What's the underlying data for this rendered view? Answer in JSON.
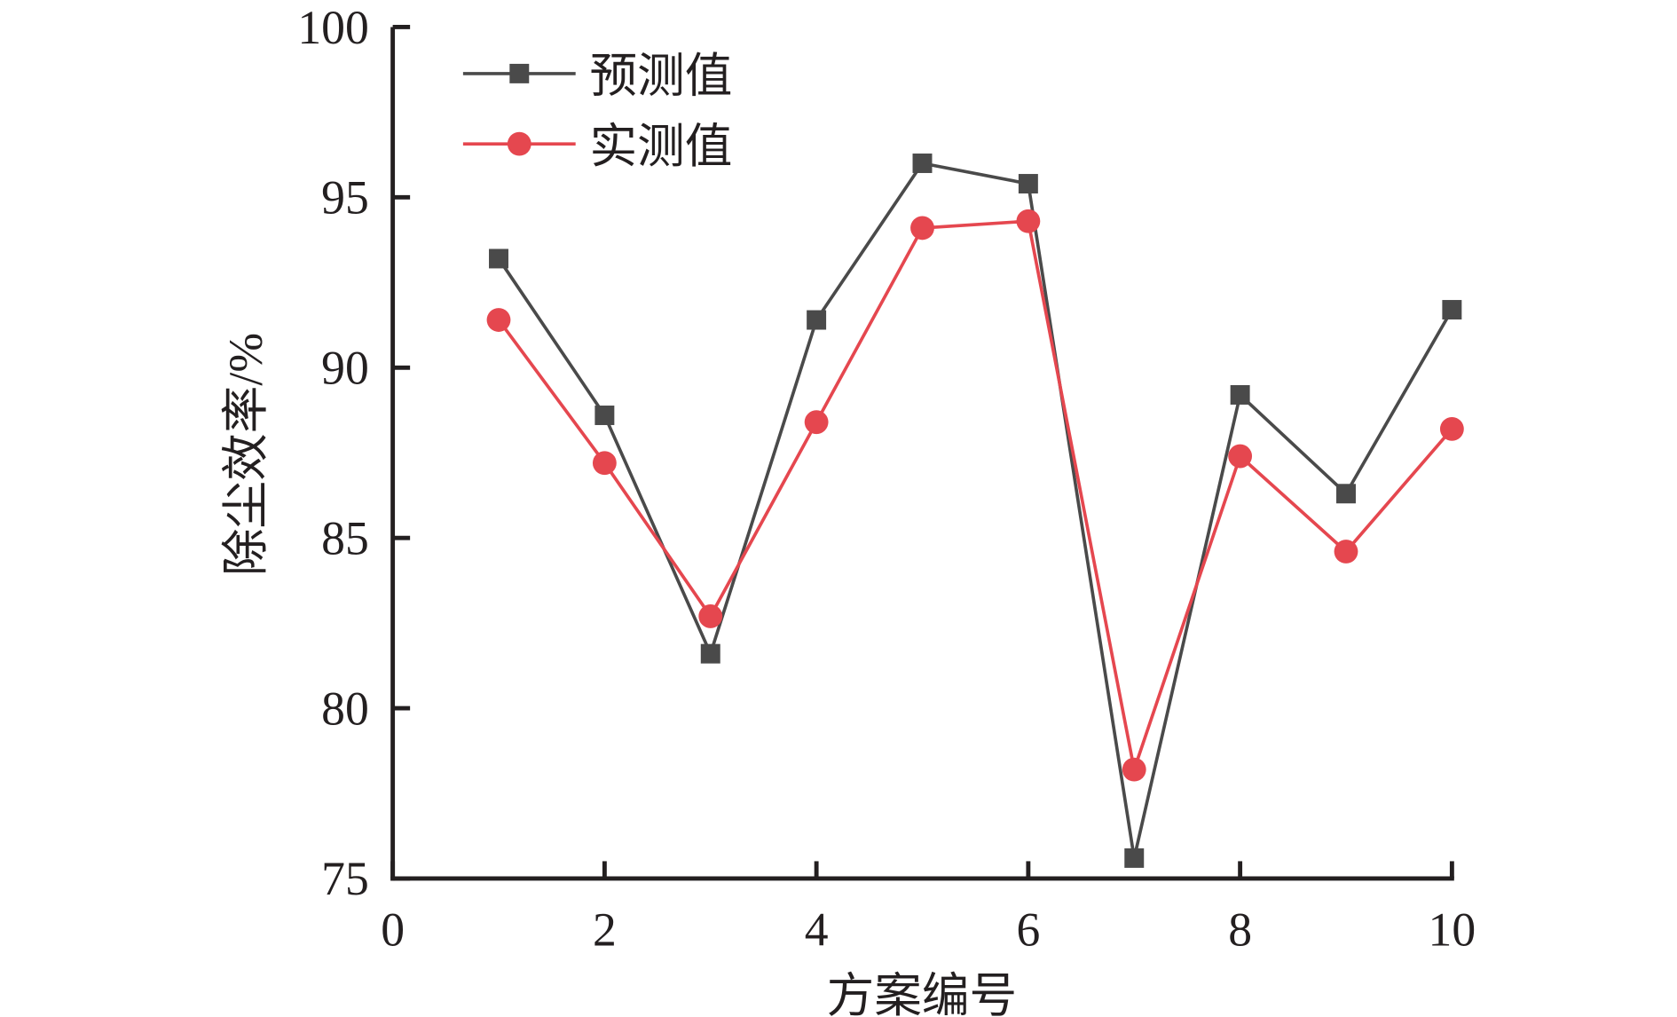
{
  "chart_data": {
    "type": "line",
    "title": "",
    "xlabel": "方案编号",
    "ylabel": "除尘效率/%",
    "xlim": [
      0,
      10
    ],
    "ylim": [
      75,
      100
    ],
    "xticks": [
      "0",
      "2",
      "4",
      "6",
      "8",
      "10"
    ],
    "yticks": [
      "75",
      "80",
      "85",
      "90",
      "95",
      "100"
    ],
    "legend_position": "top-left",
    "grid": false,
    "x": [
      1,
      2,
      3,
      4,
      5,
      6,
      7,
      8,
      9,
      10
    ],
    "series": [
      {
        "name": "预测值",
        "color": "#4a4a4a",
        "marker": "square",
        "values": [
          93.2,
          88.6,
          81.6,
          91.4,
          96.0,
          95.4,
          75.6,
          89.2,
          86.3,
          91.7
        ]
      },
      {
        "name": "实测值",
        "color": "#e5474f",
        "marker": "circle",
        "values": [
          91.4,
          87.2,
          82.7,
          88.4,
          94.1,
          94.3,
          78.2,
          87.4,
          84.6,
          88.2
        ]
      }
    ]
  }
}
